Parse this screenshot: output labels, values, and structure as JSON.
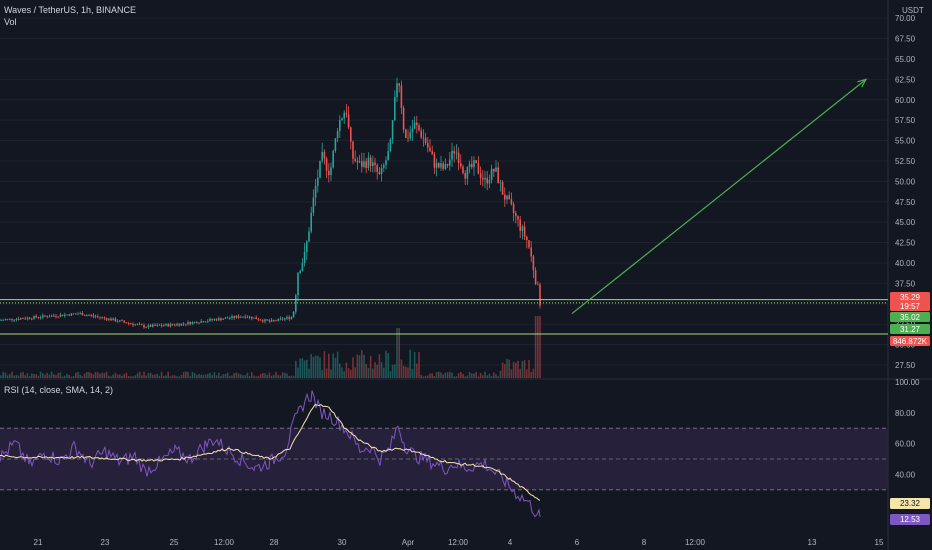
{
  "header": {
    "symbol_line": "Waves / TetherUS, 1h, BINANCE",
    "volume_label": "Vol",
    "currency": "USDT",
    "rsi_label": "RSI (14, close, SMA, 14, 2)"
  },
  "colors": {
    "background": "#131722",
    "up": "#26a69a",
    "down": "#ef5350",
    "level_line": "#a5d67a",
    "arrow": "#4caf50",
    "rsi_line": "#7e57c2",
    "rsi_sma": "#f5e6a8",
    "rsi_band": "#2a2240"
  },
  "chart_data": [
    {
      "type": "candlestick",
      "title": "Waves / TetherUS, 1h, BINANCE",
      "ylabel": "USDT",
      "y_ticks": [
        "70.00",
        "67.50",
        "65.00",
        "62.50",
        "60.00",
        "57.50",
        "55.00",
        "52.50",
        "50.00",
        "47.50",
        "45.00",
        "42.50",
        "40.00",
        "37.50",
        "35.00",
        "32.50",
        "30.00",
        "27.50"
      ],
      "ylim": [
        25.9,
        71.0
      ],
      "x_ticks": [
        "21",
        "23",
        "25",
        "12:00",
        "28",
        "30",
        "Apr",
        "12:00",
        "4",
        "6",
        "8",
        "12:00",
        "13",
        "15"
      ],
      "close_path": [
        [
          0,
          33.0
        ],
        [
          40,
          33.4
        ],
        [
          80,
          33.8
        ],
        [
          110,
          33.1
        ],
        [
          145,
          32.2
        ],
        [
          180,
          32.5
        ],
        [
          210,
          33.0
        ],
        [
          245,
          33.5
        ],
        [
          270,
          32.8
        ],
        [
          293,
          33.4
        ],
        [
          298,
          39
        ],
        [
          305,
          41
        ],
        [
          315,
          49
        ],
        [
          322,
          53
        ],
        [
          330,
          51
        ],
        [
          338,
          57
        ],
        [
          346,
          59
        ],
        [
          352,
          53
        ],
        [
          360,
          52
        ],
        [
          370,
          52.5
        ],
        [
          380,
          50.5
        ],
        [
          390,
          54
        ],
        [
          398,
          63.5
        ],
        [
          405,
          55
        ],
        [
          415,
          57
        ],
        [
          425,
          55
        ],
        [
          435,
          52
        ],
        [
          445,
          51.5
        ],
        [
          455,
          54
        ],
        [
          465,
          51
        ],
        [
          475,
          52
        ],
        [
          485,
          50
        ],
        [
          495,
          51.5
        ],
        [
          503,
          48.5
        ],
        [
          512,
          46.5
        ],
        [
          520,
          44.5
        ],
        [
          528,
          42.5
        ],
        [
          535,
          38.5
        ],
        [
          540,
          35.3
        ]
      ],
      "price_tags": [
        {
          "value": "35.29",
          "sub": "19:57",
          "color": "#ef5350"
        },
        {
          "value": "35.02",
          "color": "#4caf50"
        },
        {
          "value": "31.27",
          "color": "#4caf50"
        },
        {
          "value": "846.872K",
          "color": "#ef5350"
        }
      ],
      "levels": [
        {
          "price": 35.1,
          "dashed": true
        },
        {
          "price": 35.5,
          "dashed": false
        },
        {
          "price": 31.3,
          "dashed": false
        }
      ],
      "arrow": {
        "from": {
          "x": 572,
          "price": 33.8
        },
        "to": {
          "x": 866,
          "price": 62.5
        }
      }
    },
    {
      "type": "line",
      "title": "RSI (14, close, SMA, 14, 2)",
      "ylim": [
        0,
        100
      ],
      "y_ticks": [
        "100.00",
        "80.00",
        "60.00",
        "40.00",
        "20.00"
      ],
      "band": [
        30,
        70
      ],
      "midline": 50,
      "series": [
        {
          "name": "RSI",
          "points": [
            [
              0,
              51
            ],
            [
              15,
              60
            ],
            [
              30,
              46
            ],
            [
              45,
              54
            ],
            [
              60,
              49
            ],
            [
              75,
              58
            ],
            [
              90,
              47
            ],
            [
              105,
              55
            ],
            [
              120,
              48
            ],
            [
              135,
              52
            ],
            [
              145,
              42
            ],
            [
              160,
              48
            ],
            [
              175,
              55
            ],
            [
              190,
              50
            ],
            [
              205,
              59
            ],
            [
              215,
              63
            ],
            [
              225,
              57
            ],
            [
              240,
              50
            ],
            [
              255,
              44
            ],
            [
              270,
              48
            ],
            [
              285,
              55
            ],
            [
              295,
              75
            ],
            [
              305,
              88
            ],
            [
              312,
              92
            ],
            [
              320,
              81
            ],
            [
              330,
              78
            ],
            [
              340,
              73
            ],
            [
              350,
              66
            ],
            [
              360,
              56
            ],
            [
              370,
              58
            ],
            [
              380,
              50
            ],
            [
              390,
              57
            ],
            [
              398,
              72
            ],
            [
              405,
              59
            ],
            [
              415,
              52
            ],
            [
              425,
              50
            ],
            [
              435,
              47
            ],
            [
              445,
              44
            ],
            [
              455,
              47
            ],
            [
              465,
              44
            ],
            [
              475,
              46
            ],
            [
              485,
              47
            ],
            [
              495,
              41
            ],
            [
              503,
              37
            ],
            [
              512,
              30
            ],
            [
              520,
              26
            ],
            [
              528,
              22
            ],
            [
              535,
              16
            ],
            [
              540,
              12.5
            ]
          ]
        },
        {
          "name": "SMA",
          "points": [
            [
              0,
              52
            ],
            [
              30,
              51
            ],
            [
              60,
              51
            ],
            [
              90,
              51
            ],
            [
              120,
              50
            ],
            [
              150,
              49
            ],
            [
              180,
              50
            ],
            [
              210,
              54
            ],
            [
              230,
              57
            ],
            [
              250,
              53
            ],
            [
              270,
              50
            ],
            [
              290,
              57
            ],
            [
              305,
              74
            ],
            [
              315,
              86
            ],
            [
              330,
              83
            ],
            [
              345,
              70
            ],
            [
              360,
              62
            ],
            [
              380,
              55
            ],
            [
              398,
              57
            ],
            [
              415,
              55
            ],
            [
              435,
              50
            ],
            [
              455,
              47
            ],
            [
              475,
              46
            ],
            [
              495,
              43
            ],
            [
              510,
              37
            ],
            [
              525,
              30
            ],
            [
              540,
              23.3
            ]
          ]
        }
      ],
      "value_tags": [
        {
          "value": "23.32",
          "color": "#f5e6a8"
        },
        {
          "value": "12.53",
          "color": "#7e57c2"
        }
      ]
    }
  ]
}
